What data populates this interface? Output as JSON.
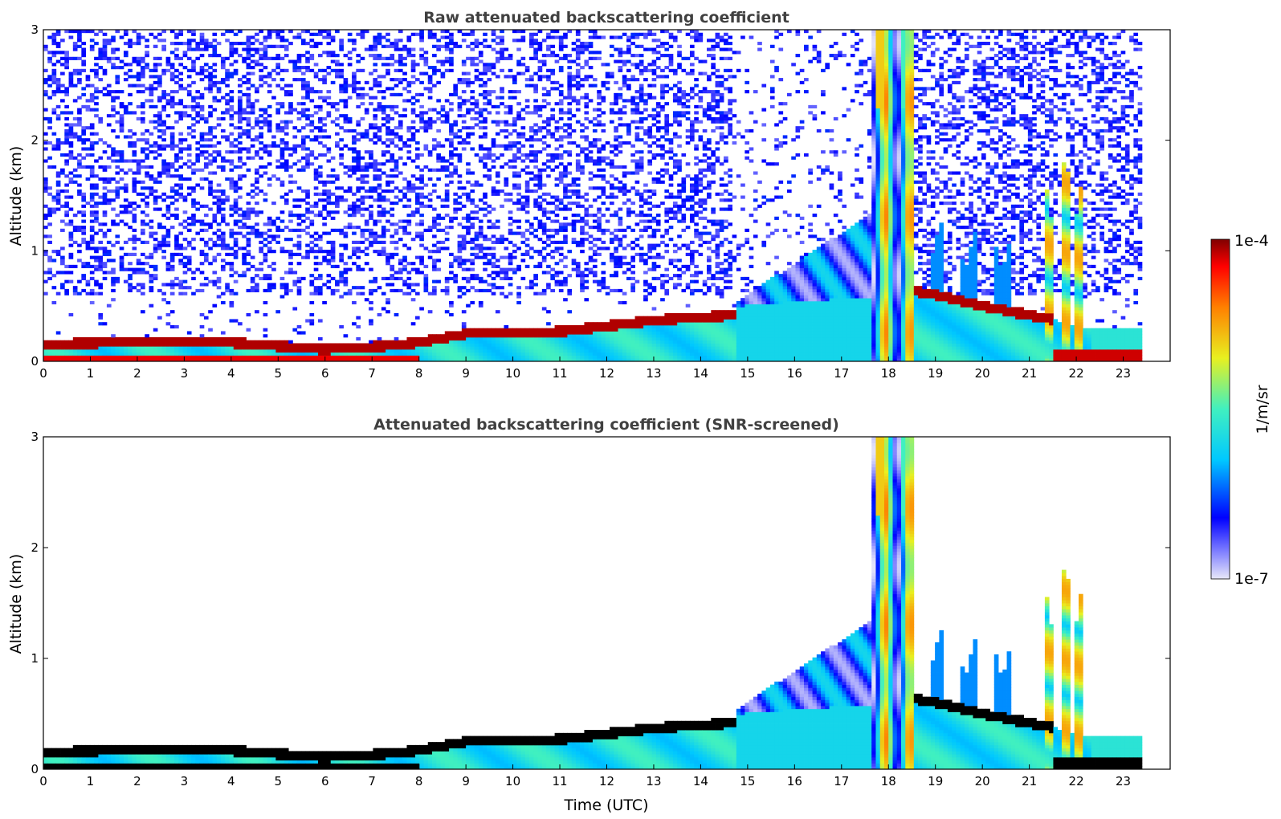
{
  "chart_data": [
    {
      "type": "heatmap",
      "title": "Raw attenuated backscattering coefficient",
      "xlabel": "",
      "ylabel": "Altitude (km)",
      "xlim": [
        0,
        24
      ],
      "ylim": [
        0,
        3
      ],
      "xticks": [
        "0",
        "1",
        "2",
        "3",
        "4",
        "5",
        "6",
        "7",
        "8",
        "9",
        "10",
        "11",
        "12",
        "13",
        "14",
        "15",
        "16",
        "17",
        "18",
        "19",
        "20",
        "21",
        "22",
        "23"
      ],
      "yticks": [
        "0",
        "1",
        "2",
        "3"
      ],
      "data_end_time": 23.4,
      "features": {
        "boundary_layer_top_km": [
          {
            "x": 0,
            "y": 0.15
          },
          {
            "x": 2,
            "y": 0.18
          },
          {
            "x": 3,
            "y": 0.18
          },
          {
            "x": 4,
            "y": 0.17
          },
          {
            "x": 5,
            "y": 0.14
          },
          {
            "x": 6,
            "y": 0.11
          },
          {
            "x": 7,
            "y": 0.13
          },
          {
            "x": 8,
            "y": 0.17
          },
          {
            "x": 9,
            "y": 0.25
          },
          {
            "x": 10,
            "y": 0.25
          },
          {
            "x": 11,
            "y": 0.27
          },
          {
            "x": 12,
            "y": 0.32
          },
          {
            "x": 13,
            "y": 0.37
          },
          {
            "x": 14,
            "y": 0.4
          },
          {
            "x": 14.8,
            "y": 0.42
          }
        ],
        "residual_layer": [
          {
            "x": 14.8,
            "y": 0.5
          },
          {
            "x": 17.6,
            "y": 1.3
          }
        ],
        "thick_cloud_column": [
          {
            "x": 17.6,
            "y": 3.0
          },
          {
            "x": 18.5,
            "y": 3.0
          }
        ],
        "cloud_deck_km": [
          {
            "x": 18.4,
            "y": 0.65
          },
          {
            "x": 19,
            "y": 0.6
          },
          {
            "x": 20,
            "y": 0.5
          },
          {
            "x": 21,
            "y": 0.42
          },
          {
            "x": 21.5,
            "y": 0.38
          }
        ],
        "tall_plume": [
          {
            "x": 21.3,
            "y": 1.8
          },
          {
            "x": 22.3,
            "y": 0.4
          }
        ]
      },
      "noise": "high"
    },
    {
      "type": "heatmap",
      "title": "Attenuated backscattering coefficient (SNR-screened)",
      "xlabel": "Time (UTC)",
      "ylabel": "Altitude (km)",
      "xlim": [
        0,
        24
      ],
      "ylim": [
        0,
        3
      ],
      "xticks": [
        "0",
        "1",
        "2",
        "3",
        "4",
        "5",
        "6",
        "7",
        "8",
        "9",
        "10",
        "11",
        "12",
        "13",
        "14",
        "15",
        "16",
        "17",
        "18",
        "19",
        "20",
        "21",
        "22",
        "23"
      ],
      "yticks": [
        "0",
        "1",
        "2",
        "3"
      ],
      "data_end_time": 23.4,
      "noise": "screened",
      "saturation_color": "#000000"
    }
  ],
  "colorbar": {
    "label": "1/m/sr",
    "min_label": "1e-7",
    "max_label": "1e-4",
    "scale": "log",
    "colormap": [
      "#e8e8f8",
      "#0000ff",
      "#00c8ff",
      "#40f0c0",
      "#e8f020",
      "#ff8000",
      "#ff0000",
      "#800000"
    ]
  }
}
